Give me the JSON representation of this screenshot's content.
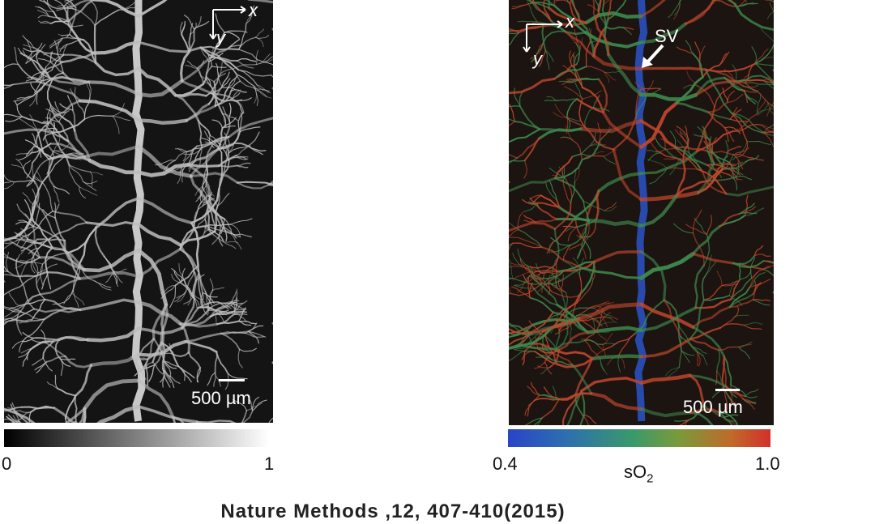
{
  "left_panel": {
    "axis_x": "x",
    "axis_y": "y",
    "scale_label": "500 µm",
    "colorbar": {
      "min": "0",
      "max": "1"
    }
  },
  "right_panel": {
    "axis_x": "x",
    "axis_y": "y",
    "annotation": "SV",
    "scale_label": "500 µm",
    "colorbar": {
      "min": "0.4",
      "max": "1.0",
      "label": "sO",
      "label_sub": "2"
    }
  },
  "caption": "Nature Methods ,12, 407-410(2015)",
  "colors": {
    "vessel_gray": "#bdbdbd",
    "vessel_green": "#3e8a4e",
    "vessel_red": "#c0472e",
    "sinus_blue": "#2a54c8"
  }
}
